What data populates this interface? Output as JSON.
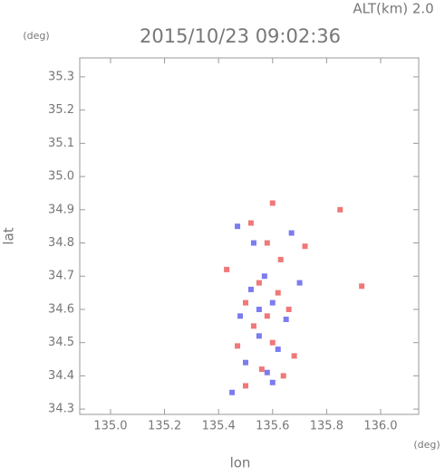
{
  "chart_data": {
    "type": "scatter",
    "title": "2015/10/23 09:02:36",
    "subtitle": "ALT(km) 2.0",
    "x_label": "lon",
    "y_label": "lat",
    "x_unit": "(deg)",
    "y_unit": "(deg)",
    "xlim": [
      134.886,
      136.141
    ],
    "ylim": [
      34.284,
      35.357
    ],
    "xticks": [
      {
        "value": 135.0,
        "label": "135.0"
      },
      135.2,
      135.4,
      135.6,
      135.8,
      {
        "value": 136.0,
        "label": "136.0"
      }
    ],
    "yticks": [
      34.3,
      34.4,
      34.5,
      34.6,
      34.7,
      34.8,
      34.9,
      {
        "value": 35.0,
        "label": "35.0"
      },
      35.1,
      35.2,
      35.3
    ],
    "series": [
      {
        "color": "#f07878",
        "x": [
          135.6,
          135.55,
          135.62,
          135.5,
          135.58,
          135.66,
          135.53,
          135.6,
          135.68,
          135.47,
          135.56,
          135.64,
          135.5,
          135.72,
          135.93,
          135.85,
          135.43,
          135.58,
          135.52,
          135.63
        ],
        "y": [
          34.92,
          34.68,
          34.65,
          34.62,
          34.58,
          34.6,
          34.55,
          34.5,
          34.46,
          34.49,
          34.42,
          34.4,
          34.37,
          34.79,
          34.67,
          34.9,
          34.72,
          34.8,
          34.86,
          34.75
        ]
      },
      {
        "color": "#7c7cf0",
        "x": [
          135.57,
          135.52,
          135.6,
          135.65,
          135.48,
          135.55,
          135.62,
          135.5,
          135.58,
          135.45,
          135.6,
          135.53,
          135.67,
          135.47,
          135.55,
          135.7
        ],
        "y": [
          34.7,
          34.66,
          34.62,
          34.57,
          34.58,
          34.52,
          34.48,
          34.44,
          34.41,
          34.35,
          34.38,
          34.8,
          34.83,
          34.85,
          34.6,
          34.68
        ]
      }
    ]
  }
}
